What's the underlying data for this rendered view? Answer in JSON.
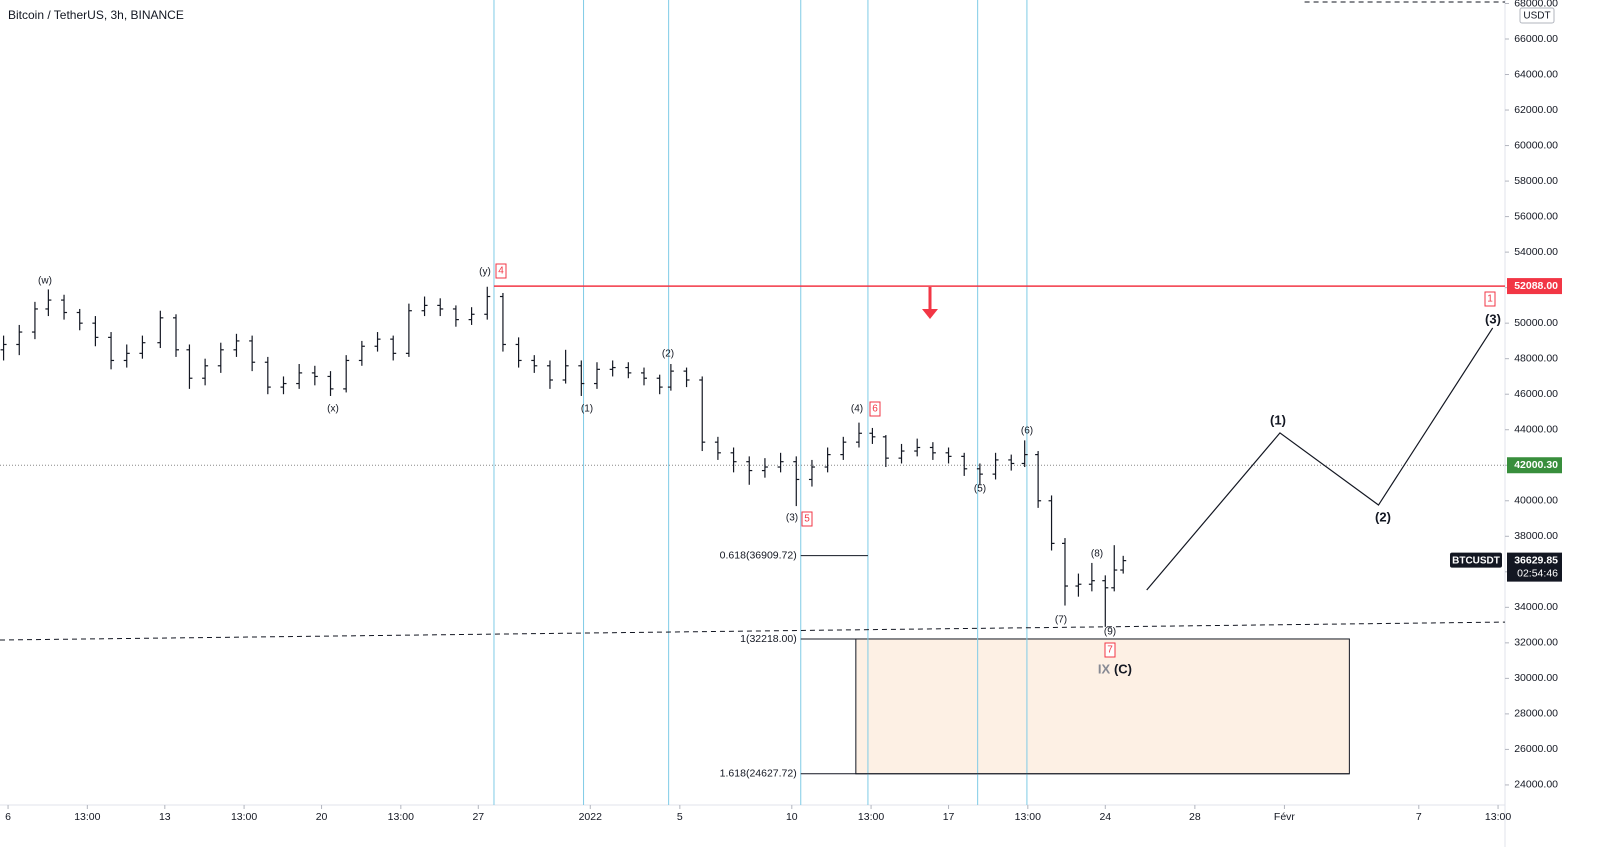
{
  "chart_data": {
    "type": "ohlc",
    "title": "Bitcoin / TetherUS, 3h, BINANCE",
    "currency": "USDT",
    "color": "#131722",
    "x": [
      -0.2,
      0.5,
      1.2,
      1.8,
      2.5,
      3.2,
      3.9,
      4.6,
      5.3,
      6.0,
      6.8,
      7.5,
      8.1,
      8.8,
      9.5,
      10.2,
      10.9,
      11.6,
      12.3,
      13.0,
      13.7,
      14.4,
      15.1,
      15.8,
      16.5,
      17.2,
      17.9,
      18.6,
      19.3,
      20.0,
      20.7,
      21.4,
      22.1,
      22.8,
      23.5,
      24.2,
      24.9,
      25.6,
      26.3,
      27.0,
      27.7,
      28.4,
      29.1,
      29.6,
      30.3,
      31.0,
      31.7,
      32.4,
      33.1,
      33.8,
      34.5,
      35.2,
      35.9,
      36.6,
      37.3,
      38.0,
      38.6,
      39.2,
      39.9,
      40.6,
      41.3,
      42.0,
      42.7,
      43.4,
      44.1,
      44.8,
      45.4,
      46.0,
      46.6,
      47.2,
      47.8,
      48.4,
      49.0,
      49.4,
      49.8
    ],
    "open": [
      48500,
      48800,
      49500,
      50800,
      51300,
      50600,
      50000,
      49200,
      47900,
      48300,
      48900,
      50300,
      48500,
      46900,
      47600,
      48500,
      49000,
      47800,
      46400,
      46600,
      47200,
      47000,
      46300,
      47900,
      48700,
      49100,
      48300,
      50700,
      51000,
      50800,
      50200,
      50500,
      51500,
      48800,
      47900,
      47600,
      46800,
      47600,
      46600,
      47400,
      47500,
      47200,
      46900,
      46400,
      47300,
      46800,
      43300,
      42700,
      42200,
      41700,
      41900,
      42200,
      41200,
      41900,
      42600,
      43300,
      43800,
      43600,
      42400,
      42800,
      43000,
      42700,
      42500,
      41800,
      41500,
      42300,
      42100,
      42600,
      40000,
      37600,
      35200,
      35300,
      35500,
      35100,
      36100
    ],
    "high": [
      49300,
      49900,
      51200,
      51900,
      51600,
      50800,
      50400,
      49500,
      48800,
      49300,
      50700,
      50500,
      48800,
      48000,
      48900,
      49400,
      49300,
      48100,
      47000,
      47700,
      47600,
      47300,
      48200,
      49000,
      49500,
      49300,
      51100,
      51500,
      51400,
      51000,
      50900,
      52050,
      51700,
      49200,
      48200,
      47900,
      48500,
      47900,
      47800,
      47900,
      47800,
      47500,
      47100,
      47700,
      47500,
      47000,
      43600,
      43000,
      42500,
      42400,
      42700,
      42500,
      42300,
      43000,
      43600,
      44400,
      44100,
      43700,
      43200,
      43500,
      43300,
      43000,
      42700,
      42100,
      42700,
      42600,
      43400,
      42800,
      40300,
      37900,
      35900,
      36500,
      35800,
      37500,
      36900
    ],
    "low": [
      47900,
      48200,
      49100,
      50400,
      50200,
      49600,
      48700,
      47400,
      47500,
      48000,
      48600,
      48100,
      46300,
      46500,
      47200,
      48100,
      47300,
      46000,
      46000,
      46300,
      46500,
      45900,
      46100,
      47600,
      48400,
      47900,
      48100,
      50400,
      50400,
      49800,
      49900,
      50200,
      48400,
      47500,
      47200,
      46300,
      46600,
      45900,
      46300,
      47000,
      46900,
      46500,
      46000,
      46200,
      46400,
      42800,
      42300,
      41600,
      40900,
      41300,
      41600,
      39700,
      40800,
      41600,
      42300,
      43000,
      43200,
      41900,
      42100,
      42500,
      42300,
      42100,
      41400,
      40900,
      41200,
      41700,
      41900,
      39600,
      37200,
      34100,
      34600,
      34900,
      32900,
      34900,
      35900
    ],
    "close": [
      48800,
      49500,
      50800,
      51300,
      50600,
      50000,
      49200,
      47900,
      48300,
      48900,
      50300,
      48500,
      46900,
      47600,
      48500,
      49000,
      47800,
      46400,
      46600,
      47200,
      47000,
      46300,
      47900,
      48700,
      49100,
      48300,
      50700,
      51000,
      50800,
      50200,
      50500,
      51500,
      48800,
      47900,
      47600,
      46800,
      47600,
      46600,
      47400,
      47500,
      47200,
      46900,
      46400,
      47300,
      46800,
      43300,
      42700,
      42200,
      41700,
      41900,
      42200,
      41200,
      41900,
      42600,
      43300,
      43800,
      43600,
      42400,
      42800,
      43000,
      42700,
      42500,
      41800,
      41500,
      42300,
      42100,
      42600,
      40000,
      37600,
      35200,
      35300,
      35500,
      35100,
      36100,
      36629.85
    ],
    "xlim": [
      -0.36,
      66.85
    ],
    "xticks": [
      {
        "value": 0,
        "label": "6"
      },
      {
        "value": 3.54,
        "label": "13:00"
      },
      {
        "value": 7,
        "label": "13"
      },
      {
        "value": 10.54,
        "label": "13:00"
      },
      {
        "value": 14,
        "label": "20"
      },
      {
        "value": 17.54,
        "label": "13:00"
      },
      {
        "value": 21,
        "label": "27"
      },
      {
        "value": 26,
        "label": "2022"
      },
      {
        "value": 30,
        "label": "5"
      },
      {
        "value": 35,
        "label": "10"
      },
      {
        "value": 38.54,
        "label": "13:00"
      },
      {
        "value": 42,
        "label": "17"
      },
      {
        "value": 45.54,
        "label": "13:00"
      },
      {
        "value": 49,
        "label": "24"
      },
      {
        "value": 53,
        "label": "28"
      },
      {
        "value": 57,
        "label": "Févr"
      },
      {
        "value": 63,
        "label": "7"
      },
      {
        "value": 66.54,
        "label": "13:00"
      }
    ],
    "ylim": [
      22870,
      68196
    ],
    "yticks": [
      {
        "value": 24000,
        "label": "24000.00"
      },
      {
        "value": 26000,
        "label": "26000.00"
      },
      {
        "value": 28000,
        "label": "28000.00"
      },
      {
        "value": 30000,
        "label": "30000.00"
      },
      {
        "value": 32000,
        "label": "32000.00"
      },
      {
        "value": 34000,
        "label": "34000.00"
      },
      {
        "value": 36000,
        "label": "36000.00"
      },
      {
        "value": 38000,
        "label": "38000.00"
      },
      {
        "value": 40000,
        "label": "40000.00"
      },
      {
        "value": 42000,
        "label": "42000.00"
      },
      {
        "value": 44000,
        "label": "44000.00"
      },
      {
        "value": 46000,
        "label": "46000.00"
      },
      {
        "value": 48000,
        "label": "48000.00"
      },
      {
        "value": 50000,
        "label": "50000.00"
      },
      {
        "value": 52000,
        "label": "52000.00"
      },
      {
        "value": 54000,
        "label": "54000.00"
      },
      {
        "value": 56000,
        "label": "56000.00"
      },
      {
        "value": 58000,
        "label": "58000.00"
      },
      {
        "value": 60000,
        "label": "60000.00"
      },
      {
        "value": 62000,
        "label": "62000.00"
      },
      {
        "value": 64000,
        "label": "64000.00"
      },
      {
        "value": 66000,
        "label": "66000.00"
      },
      {
        "value": 68000,
        "label": "68000.00"
      }
    ],
    "vlines": [
      21.7,
      25.7,
      29.5,
      35.4,
      38.4,
      43.3,
      45.5
    ],
    "resistance": {
      "x": 21.7,
      "value": 52088,
      "label": "52088.00",
      "color": "#f23645"
    },
    "price_line": {
      "value": 42000.3,
      "label": "42000.30",
      "color": "#388e3c"
    },
    "last": {
      "symbol": "BTCUSDT",
      "value": 36629.85,
      "label": "36629.85",
      "countdown": "02:54:46"
    },
    "trendlines": [
      {
        "x": [
          -0.36,
          66.85
        ],
        "values": [
          32160,
          33170
        ]
      },
      {
        "x": [
          57.9,
          66.85
        ],
        "values": [
          68080,
          68080
        ]
      }
    ],
    "fib": [
      {
        "label": "0.618(36909.72)",
        "value": 36909.72,
        "x": [
          35.4,
          38.4
        ]
      },
      {
        "label": "1(32218.00)",
        "value": 32218,
        "x": [
          35.4,
          37.86
        ]
      },
      {
        "label": "1.618(24627.72)",
        "value": 24627.72,
        "x": [
          35.4,
          59.9
        ]
      }
    ],
    "zone": {
      "x": [
        37.86,
        59.9
      ],
      "values": [
        32218,
        24627.72
      ],
      "color": "#fdf0e4"
    },
    "projection": {
      "x": [
        50.85,
        56.8,
        61.2,
        66.3
      ],
      "values": [
        34975,
        43820,
        39760,
        49730
      ]
    },
    "wave_labels": [
      "(w)",
      "(x)",
      "(y)",
      "(1)",
      "(2)",
      "(3)",
      "(4)",
      "(5)",
      "(6)",
      "(7)",
      "(8)",
      "(9)"
    ],
    "boxed_labels": [
      "4",
      "5",
      "6",
      "7",
      "1"
    ],
    "projection_labels": [
      "(1)",
      "(2)",
      "(3)"
    ],
    "degree_label": "IX",
    "degree_wave": "(C)"
  }
}
